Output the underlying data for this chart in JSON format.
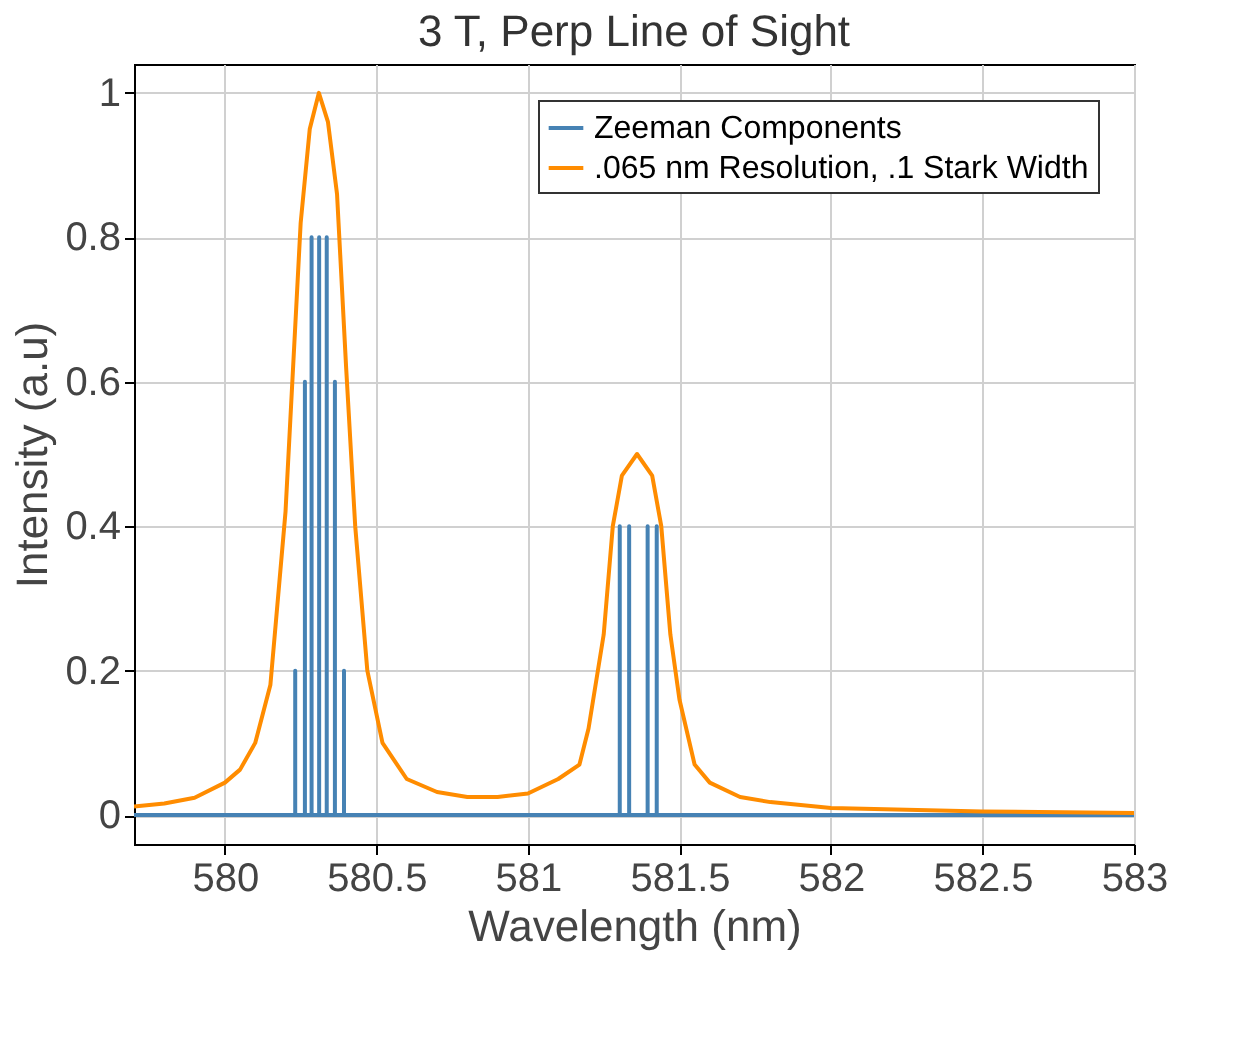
{
  "chart_data": {
    "type": "line",
    "title": "3 T, Perp Line of Sight",
    "xlabel": "Wavelength (nm)",
    "ylabel": "Intensity (a.u)",
    "xlim": [
      579.7,
      583
    ],
    "ylim": [
      -0.04,
      1.04
    ],
    "xticks": [
      580,
      580.5,
      581,
      581.5,
      582,
      582.5,
      583
    ],
    "yticks": [
      0,
      0.2,
      0.4,
      0.6,
      0.8,
      1
    ],
    "grid": true,
    "legend": "top right",
    "line_style": "solid",
    "marker": "none",
    "series": [
      {
        "name": "Zeeman Components",
        "color": "#4682b4",
        "x": [
          579.7,
          580.232,
          580.232,
          580.232,
          580.264,
          580.264,
          580.264,
          580.286,
          580.286,
          580.286,
          580.311,
          580.311,
          580.311,
          580.336,
          580.336,
          580.336,
          580.363,
          580.363,
          580.363,
          580.393,
          580.393,
          580.393,
          581.303,
          581.303,
          581.303,
          581.334,
          581.334,
          581.334,
          581.395,
          581.395,
          581.395,
          581.425,
          581.425,
          581.425,
          583
        ],
        "values": [
          0,
          0,
          0.2,
          0,
          0,
          0.6,
          0,
          0,
          0.8,
          0,
          0,
          0.8,
          0,
          0,
          0.8,
          0,
          0,
          0.6,
          0,
          0,
          0.2,
          0,
          0,
          0.4,
          0,
          0,
          0.4,
          0,
          0,
          0.4,
          0,
          0,
          0.4,
          0,
          0
        ]
      },
      {
        "name": ".065 nm Resolution, .1 Stark Width",
        "color": "#ff8c00",
        "x": [
          579.7,
          579.8,
          579.9,
          580.0,
          580.05,
          580.1,
          580.15,
          580.2,
          580.25,
          580.28,
          580.31,
          580.34,
          580.37,
          580.4,
          580.43,
          580.47,
          580.52,
          580.6,
          580.7,
          580.8,
          580.9,
          581.0,
          581.1,
          581.17,
          581.2,
          581.25,
          581.28,
          581.31,
          581.36,
          581.41,
          581.44,
          581.47,
          581.5,
          581.55,
          581.6,
          581.7,
          581.8,
          582.0,
          582.5,
          583.0
        ],
        "values": [
          0.012,
          0.016,
          0.024,
          0.045,
          0.063,
          0.1,
          0.18,
          0.42,
          0.82,
          0.95,
          1.0,
          0.96,
          0.86,
          0.62,
          0.4,
          0.2,
          0.1,
          0.05,
          0.032,
          0.025,
          0.025,
          0.03,
          0.05,
          0.07,
          0.12,
          0.25,
          0.4,
          0.47,
          0.5,
          0.47,
          0.4,
          0.25,
          0.16,
          0.07,
          0.045,
          0.025,
          0.018,
          0.01,
          0.005,
          0.003
        ]
      }
    ]
  }
}
